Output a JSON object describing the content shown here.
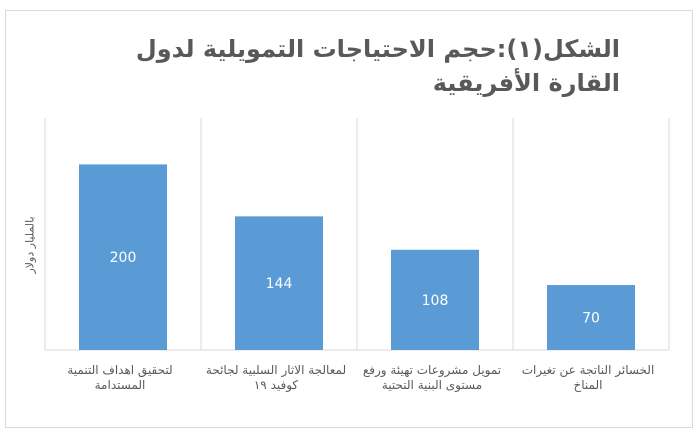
{
  "chart_data": {
    "type": "bar",
    "title": "الشكل(١):حجم الاحتياجات التمويلية لدول القارة الأفريقية",
    "ylabel": "بالمليار دولار",
    "xlabel": "",
    "categories": [
      "لتحقيق اهداف التنمية المستدامة",
      "لمعالجة الاثار السلبية لجائحة كوفيد ١٩",
      "تمويل مشروعات تهيئة ورفع مستوى البنية التحتية",
      "الخسائر الناتجة عن تغيرات المناخ"
    ],
    "values": [
      200,
      144,
      108,
      70
    ],
    "data_labels": [
      "200",
      "144",
      "108",
      "70"
    ],
    "ylim": [
      0,
      250
    ],
    "grid": "vertical category separators",
    "legend": "none",
    "bar_color": "#5b9bd5",
    "label_color": "#ffffff"
  }
}
